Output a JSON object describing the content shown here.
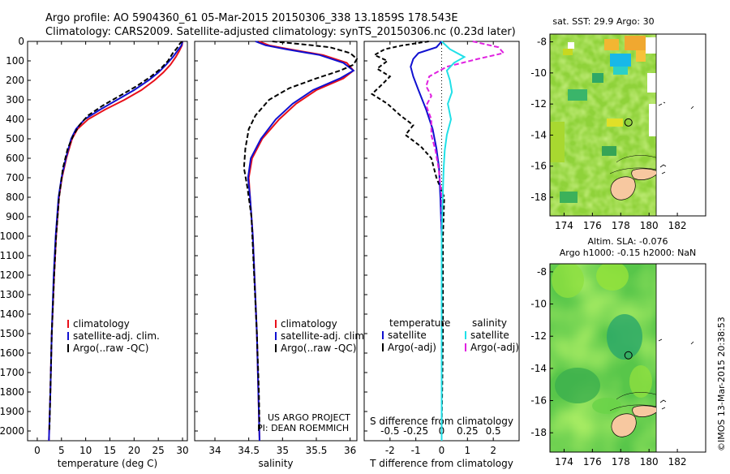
{
  "header": {
    "line1": "Argo profile: AO 5904360_61 05-Mar-2015 20150306_338 13.1859S 178.543E",
    "line2": "Climatology: CARS2009. Satellite-adjusted climatology: synTS_20150306.nc (0.23d later)"
  },
  "credits": {
    "project": "US ARGO PROJECT",
    "pi": "PI: DEAN ROEMMICH",
    "stamp": "©IMOS 13-Mar-2015 20:38:53"
  },
  "colors": {
    "climatology": "#e8101a",
    "satellite": "#1010d0",
    "argo": "#000000",
    "sal_satellite": "#20e0e8",
    "sal_argo": "#e020e0"
  },
  "chart_data": [
    {
      "type": "line",
      "xlabel": "temperature (deg C)",
      "ylabel": "",
      "xlim": [
        -2,
        31
      ],
      "ylim": [
        2050,
        0
      ],
      "xticks": [
        0,
        5,
        10,
        15,
        20,
        25,
        30
      ],
      "yticks": [
        0,
        100,
        200,
        300,
        400,
        500,
        600,
        700,
        800,
        900,
        1000,
        1100,
        1200,
        1300,
        1400,
        1500,
        1600,
        1700,
        1800,
        1900,
        2000
      ],
      "legend": [
        "climatology",
        "satellite-adj. clim.",
        "Argo(..raw -QC)"
      ],
      "series": [
        {
          "name": "climatology",
          "depth": [
            0,
            20,
            50,
            80,
            120,
            160,
            200,
            250,
            300,
            350,
            400,
            450,
            500,
            600,
            700,
            800,
            1000,
            1200,
            1500,
            1800,
            2050
          ],
          "values": [
            30,
            29.9,
            29.3,
            28.6,
            27.5,
            26,
            24.2,
            21.5,
            18,
            14,
            10.5,
            8.3,
            7.2,
            6,
            5.1,
            4.5,
            3.9,
            3.5,
            3,
            2.7,
            2.4
          ]
        },
        {
          "name": "satellite-adj. clim.",
          "depth": [
            0,
            20,
            50,
            80,
            120,
            160,
            200,
            250,
            300,
            350,
            400,
            450,
            500,
            600,
            700,
            800,
            1000,
            1200,
            1500,
            1800,
            2050
          ],
          "values": [
            30,
            29.8,
            28.9,
            28,
            26.6,
            25,
            23,
            20,
            16.5,
            13,
            9.8,
            8,
            7,
            5.9,
            5,
            4.4,
            3.8,
            3.4,
            3,
            2.7,
            2.4
          ]
        },
        {
          "name": "Argo(..raw -QC)",
          "depth": [
            0,
            10,
            30,
            60,
            100,
            140,
            180,
            230,
            280,
            330,
            380,
            430,
            480,
            550,
            650,
            800,
            1000,
            1200,
            1500,
            1800,
            2000
          ],
          "values": [
            30,
            29.5,
            29,
            28,
            27,
            25.5,
            23.5,
            20.5,
            17,
            13.5,
            10.5,
            8.7,
            7.5,
            6.3,
            5.3,
            4.5,
            3.9,
            3.5,
            3,
            2.7,
            2.5
          ]
        }
      ]
    },
    {
      "type": "line",
      "xlabel": "salinity",
      "ylabel": "",
      "xlim": [
        33.7,
        36.1
      ],
      "ylim": [
        2050,
        0
      ],
      "xticks": [
        34,
        34.5,
        35,
        35.5,
        36
      ],
      "legend": [
        "climatology",
        "satellite-adj. clim.",
        "Argo(..raw -QC)"
      ],
      "series": [
        {
          "name": "climatology",
          "depth": [
            0,
            20,
            40,
            70,
            110,
            150,
            190,
            250,
            320,
            400,
            500,
            600,
            700,
            800,
            1000,
            1500,
            2050
          ],
          "values": [
            34.65,
            34.8,
            35.1,
            35.6,
            35.95,
            36.05,
            35.9,
            35.5,
            35.2,
            34.95,
            34.7,
            34.55,
            34.5,
            34.52,
            34.56,
            34.62,
            34.66
          ]
        },
        {
          "name": "satellite-adj. clim.",
          "depth": [
            0,
            20,
            40,
            70,
            110,
            150,
            190,
            250,
            320,
            400,
            500,
            600,
            700,
            800,
            1000,
            1500,
            2050
          ],
          "values": [
            34.6,
            34.75,
            35.05,
            35.55,
            35.9,
            36.05,
            35.85,
            35.45,
            35.15,
            34.9,
            34.68,
            34.53,
            34.49,
            34.52,
            34.56,
            34.62,
            34.66
          ]
        },
        {
          "name": "Argo(..raw -QC)",
          "depth": [
            0,
            15,
            30,
            60,
            90,
            120,
            150,
            190,
            240,
            300,
            380,
            450,
            550,
            650,
            750,
            900,
            1200,
            1500,
            1800,
            2000
          ],
          "values": [
            34.85,
            35.3,
            35.7,
            36,
            36.1,
            36.05,
            35.85,
            35.5,
            35.1,
            34.8,
            34.6,
            34.5,
            34.45,
            34.43,
            34.48,
            34.54,
            34.58,
            34.62,
            34.65,
            34.66
          ]
        }
      ]
    },
    {
      "type": "line",
      "xlabel": "T difference from climatology",
      "x2label": "S difference from climatology",
      "ylabel": "",
      "xlim": [
        -3,
        3
      ],
      "ylim": [
        2050,
        0
      ],
      "xticks": [
        -2,
        -1,
        0,
        1,
        2
      ],
      "x2ticks": [
        -0.5,
        -0.25,
        0,
        0.25,
        0.5
      ],
      "legend_groups": [
        "temperature",
        "salinity"
      ],
      "legend": [
        "satellite",
        "Argo(-adj)",
        "satellite",
        "Argo(-adj)"
      ],
      "series": [
        {
          "name": "satellite",
          "group": "temperature",
          "depth": [
            0,
            30,
            60,
            90,
            130,
            180,
            250,
            350,
            450,
            550,
            650,
            800,
            1000,
            1500,
            2050
          ],
          "values": [
            0,
            -0.2,
            -0.9,
            -1.1,
            -1.2,
            -1.1,
            -0.9,
            -0.6,
            -0.35,
            -0.2,
            -0.1,
            -0.05,
            0,
            0,
            0
          ]
        },
        {
          "name": "Argo(-adj)",
          "group": "temperature",
          "depth": [
            0,
            20,
            40,
            70,
            100,
            140,
            180,
            220,
            270,
            320,
            380,
            430,
            480,
            540,
            600,
            700,
            800,
            1000,
            1500,
            2000
          ],
          "values": [
            -0.5,
            -1.5,
            -2.2,
            -2.6,
            -2.1,
            -2.5,
            -2.0,
            -2.3,
            -2.7,
            -2.1,
            -1.6,
            -1.1,
            -1.4,
            -0.8,
            -0.4,
            -0.2,
            0.1,
            0.05,
            0.05,
            0
          ]
        },
        {
          "name": "satellite",
          "group": "salinity",
          "depth": [
            0,
            40,
            80,
            110,
            150,
            200,
            260,
            320,
            400,
            480,
            560,
            650,
            800,
            1000,
            1500,
            2050
          ],
          "values": [
            0,
            0.08,
            0.22,
            0.12,
            0.05,
            0.08,
            0.1,
            0.06,
            0.09,
            0.05,
            0.03,
            0.02,
            0.01,
            0,
            0,
            0
          ]
        },
        {
          "name": "Argo(-adj)",
          "group": "salinity",
          "depth": [
            0,
            30,
            60,
            90,
            130,
            180,
            230,
            280,
            330,
            400,
            480,
            560,
            650,
            800,
            1000,
            1500,
            2000
          ],
          "values": [
            0.3,
            0.55,
            0.6,
            0.35,
            0.05,
            -0.12,
            -0.15,
            -0.1,
            -0.15,
            -0.1,
            -0.1,
            -0.06,
            -0.03,
            0,
            0,
            0,
            0
          ]
        }
      ]
    },
    {
      "type": "heatmap",
      "title": "sat. SST: 29.9  Argo: 30",
      "xticks": [
        174,
        176,
        178,
        180,
        182
      ],
      "yticks": [
        -8,
        -10,
        -12,
        -14,
        -16,
        -18
      ],
      "xlim": [
        173,
        184
      ],
      "ylim": [
        -19.2,
        -7.5
      ],
      "marker": {
        "lon": 178.543,
        "lat": -13.1859
      }
    },
    {
      "type": "heatmap",
      "title": "Altim. SLA: -0.076",
      "subtitle": "Argo h1000: -0.15 h2000: NaN",
      "xticks": [
        174,
        176,
        178,
        180,
        182
      ],
      "yticks": [
        -8,
        -10,
        -12,
        -14,
        -16,
        -18
      ],
      "xlim": [
        173,
        184
      ],
      "ylim": [
        -19.2,
        -7.5
      ],
      "marker": {
        "lon": 178.543,
        "lat": -13.1859
      }
    }
  ]
}
